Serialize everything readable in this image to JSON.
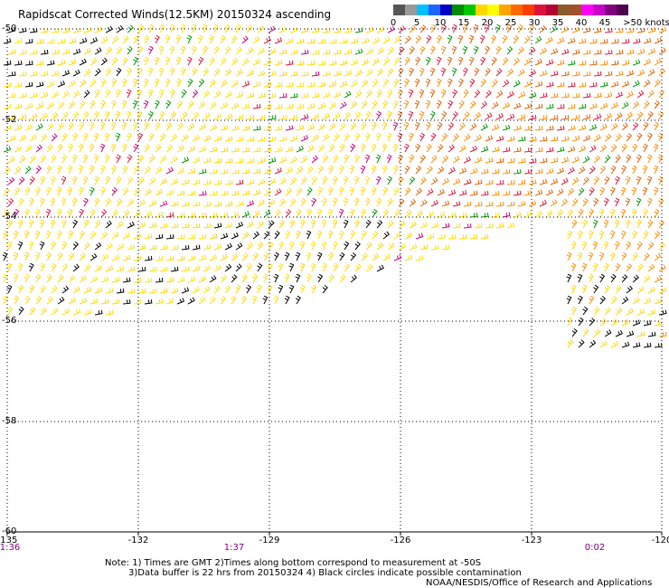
{
  "title": "Rapidscat Corrected Winds(12.5KM) 20150324 ascending",
  "legend": {
    "labels": [
      "0",
      "5",
      "10",
      "15",
      "20",
      "25",
      "30",
      "35",
      "40",
      "45",
      ">50 knots"
    ],
    "colors": [
      "#555555",
      "#999999",
      "#00bfff",
      "#1e64ff",
      "#0000c8",
      "#008c00",
      "#00c800",
      "#ffd700",
      "#ffff00",
      "#ffa500",
      "#ff6a00",
      "#ff3c00",
      "#dc143c",
      "#b40032",
      "#8b5a2b",
      "#a0522d",
      "#ff00ff",
      "#c800c8",
      "#800080",
      "#500050"
    ]
  },
  "axes": {
    "lat_labels": [
      "-50",
      "-52",
      "-54",
      "-56",
      "-58",
      "-60"
    ],
    "lon_labels": [
      "-135",
      "-132",
      "-129",
      "-126",
      "-123",
      "-120"
    ]
  },
  "times": [
    "1:36",
    "1:37",
    "0:02"
  ],
  "notes": {
    "line1": "Note: 1) Times are GMT 2)Times along bottom correspond to measurement at -50S",
    "line2": "3)Data buffer is 22 hrs from 20150324 4) Black circles indicate possible contamination",
    "credit": "NOAA/NESDIS/Office of Research and Applications"
  },
  "wind_colors": {
    "black": "#000000",
    "yellow": "#ffd700",
    "lightyellow": "#ffe000",
    "orange": "#ff8c00",
    "darkorange": "#e06000",
    "red": "#dc143c",
    "green": "#009600",
    "magenta": "#c8007a"
  }
}
